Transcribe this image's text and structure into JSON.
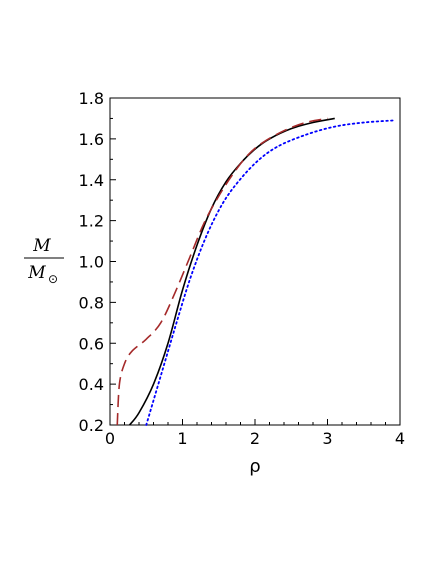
{
  "chart_data": {
    "type": "line",
    "xlabel": "ρ",
    "ylabel": {
      "numerator": "M",
      "denominator": "M",
      "denominator_subscript": "⊙"
    },
    "xlim": [
      0,
      4
    ],
    "ylim": [
      0.2,
      1.8
    ],
    "x_ticks": [
      0,
      1,
      2,
      3,
      4
    ],
    "x_tick_labels": [
      "0",
      "1",
      "2",
      "3",
      "4"
    ],
    "y_ticks": [
      0.2,
      0.4,
      0.6,
      0.8,
      1.0,
      1.2,
      1.4,
      1.6,
      1.8
    ],
    "y_tick_labels": [
      "0.2",
      "0.4",
      "0.6",
      "0.8",
      "1.0",
      "1.2",
      "1.4",
      "1.6",
      "1.8"
    ],
    "grid": false,
    "series": [
      {
        "color": "#000000",
        "style": "solid",
        "points": [
          [
            0.27,
            0.2
          ],
          [
            0.4,
            0.26
          ],
          [
            0.6,
            0.4
          ],
          [
            0.8,
            0.6
          ],
          [
            1.0,
            0.86
          ],
          [
            1.2,
            1.08
          ],
          [
            1.4,
            1.26
          ],
          [
            1.6,
            1.39
          ],
          [
            1.8,
            1.48
          ],
          [
            2.0,
            1.55
          ],
          [
            2.2,
            1.6
          ],
          [
            2.5,
            1.65
          ],
          [
            2.8,
            1.68
          ],
          [
            3.1,
            1.7
          ]
        ]
      },
      {
        "color": "#a52a2a",
        "style": "dashed",
        "points": [
          [
            0.1,
            0.2
          ],
          [
            0.13,
            0.4
          ],
          [
            0.2,
            0.5
          ],
          [
            0.3,
            0.56
          ],
          [
            0.5,
            0.62
          ],
          [
            0.7,
            0.7
          ],
          [
            0.9,
            0.85
          ],
          [
            1.1,
            1.02
          ],
          [
            1.3,
            1.19
          ],
          [
            1.5,
            1.32
          ],
          [
            1.7,
            1.43
          ],
          [
            1.9,
            1.52
          ],
          [
            2.1,
            1.58
          ],
          [
            2.4,
            1.64
          ],
          [
            2.7,
            1.68
          ],
          [
            3.0,
            1.7
          ]
        ]
      },
      {
        "color": "#0000ff",
        "style": "dotted",
        "points": [
          [
            0.5,
            0.2
          ],
          [
            0.7,
            0.44
          ],
          [
            0.9,
            0.68
          ],
          [
            1.1,
            0.91
          ],
          [
            1.3,
            1.1
          ],
          [
            1.5,
            1.25
          ],
          [
            1.7,
            1.36
          ],
          [
            2.0,
            1.48
          ],
          [
            2.3,
            1.56
          ],
          [
            2.7,
            1.62
          ],
          [
            3.1,
            1.66
          ],
          [
            3.5,
            1.68
          ],
          [
            3.9,
            1.69
          ]
        ]
      }
    ]
  }
}
